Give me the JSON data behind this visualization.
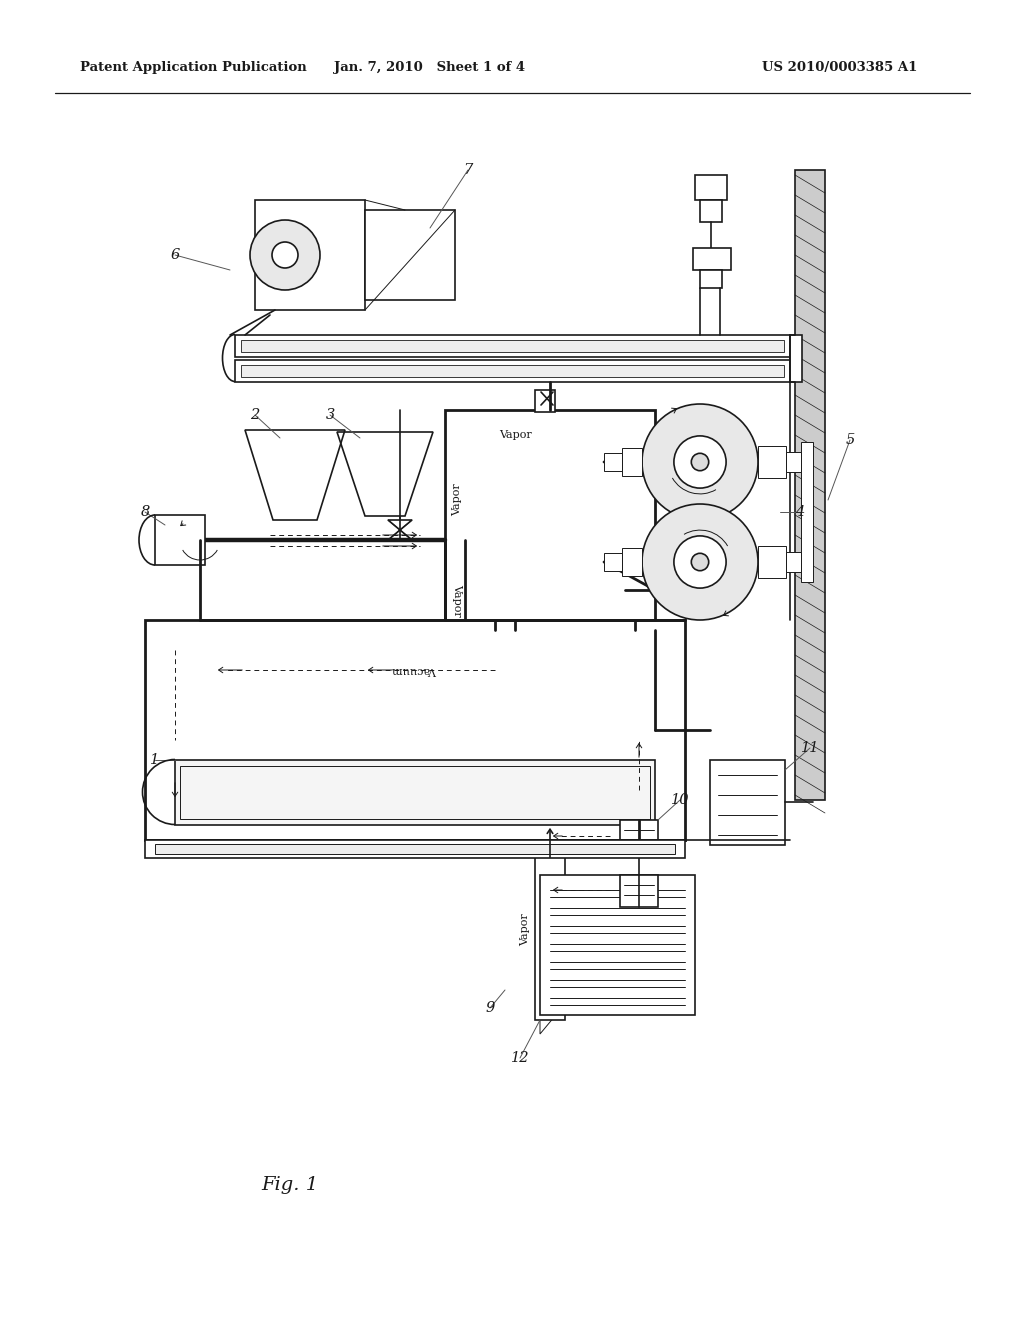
{
  "header_left": "Patent Application Publication",
  "header_mid": "Jan. 7, 2010   Sheet 1 of 4",
  "header_right": "US 2010/0003385 A1",
  "caption": "Fig. 1",
  "bg_color": "#ffffff",
  "line_color": "#1a1a1a",
  "gray_hatch": "#b0b0b0",
  "light_fill": "#f0f0f0"
}
